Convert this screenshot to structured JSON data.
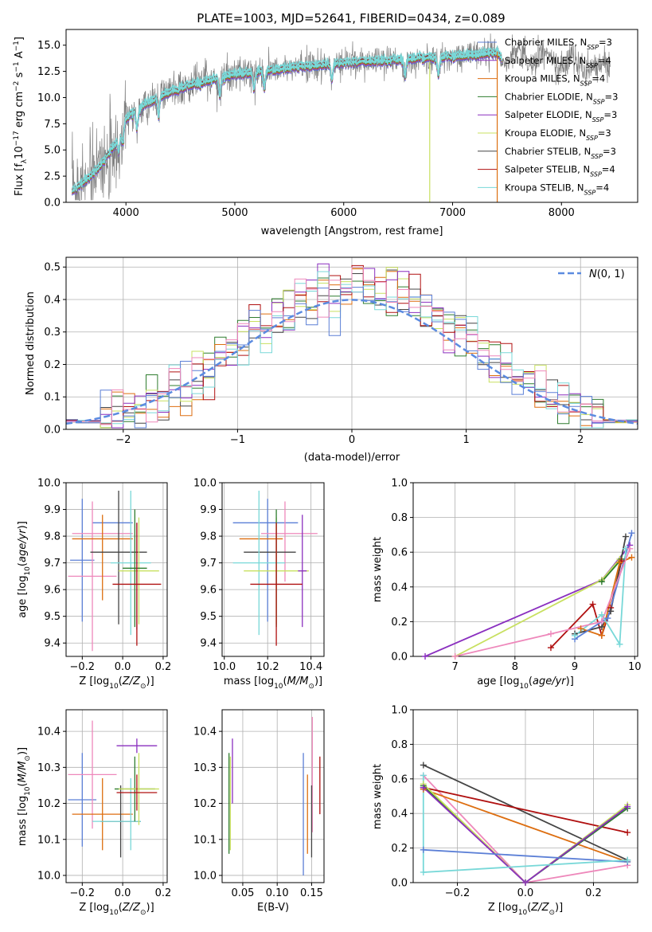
{
  "figure_title": "PLATE=1003, MJD=52641, FIBERID=0434, z=0.089",
  "colors": {
    "Chabrier MILES": "#5b7fd6",
    "Salpeter MILES": "#8a2fbf",
    "Kroupa MILES": "#dd6e10",
    "Chabrier ELODIE": "#2f7d2f",
    "Salpeter ELODIE": "#8a2fbf",
    "Kroupa ELODIE": "#c8e060",
    "Chabrier STELIB": "#444444",
    "Salpeter STELIB": "#b01010",
    "Kroupa STELIB": "#78d8d8",
    "data": "#808080",
    "gaussian": "#5b8be0",
    "grid": "#b0b0b0"
  },
  "chart_data": [
    {
      "id": "spectrum",
      "type": "line",
      "title": "PLATE=1003, MJD=52641, FIBERID=0434, z=0.089",
      "xlabel": "wavelength [Angstrom, rest frame]",
      "ylabel": "Flux [f_λ 10^-17 erg cm^-2 s^-1 A^-1]",
      "xlim": [
        3450,
        8700
      ],
      "ylim": [
        0,
        16.5
      ],
      "xticks": [
        4000,
        5000,
        6000,
        7000,
        8000
      ],
      "yticks": [
        0.0,
        2.5,
        5.0,
        7.5,
        10.0,
        12.5,
        15.0
      ],
      "grid": false,
      "legend": "top-right",
      "legend_entries": [
        {
          "label": "Chabrier MILES, N",
          "sub": "SSP",
          "suffix": "=3",
          "color": "#5b7fd6"
        },
        {
          "label": "Salpeter MILES, N",
          "sub": "SSP",
          "suffix": "=4",
          "color": "#8a2fbf"
        },
        {
          "label": "Kroupa MILES, N",
          "sub": "SSP",
          "suffix": "=4",
          "color": "#dd6e10"
        },
        {
          "label": "Chabrier ELODIE, N",
          "sub": "SSP",
          "suffix": "=3",
          "color": "#2f7d2f"
        },
        {
          "label": "Salpeter ELODIE, N",
          "sub": "SSP",
          "suffix": "=3",
          "color": "#8a2fbf"
        },
        {
          "label": "Kroupa ELODIE, N",
          "sub": "SSP",
          "suffix": "=3",
          "color": "#c8e060"
        },
        {
          "label": "Chabrier STELIB, N",
          "sub": "SSP",
          "suffix": "=3",
          "color": "#444444"
        },
        {
          "label": "Salpeter STELIB, N",
          "sub": "SSP",
          "suffix": "=4",
          "color": "#b01010"
        },
        {
          "label": "Kroupa STELIB, N",
          "sub": "SSP",
          "suffix": "=4",
          "color": "#78d8d8"
        }
      ],
      "continuum_model": {
        "wavelength": [
          3500,
          3700,
          3900,
          4000,
          4200,
          4400,
          4700,
          5000,
          5300,
          5600,
          6000,
          6500,
          7000,
          7400
        ],
        "flux": [
          3.5,
          4.2,
          6.0,
          8.0,
          9.5,
          10.5,
          11.5,
          12.2,
          12.6,
          12.9,
          13.3,
          13.6,
          13.9,
          14.3
        ]
      },
      "model_end_wavelength": 7450,
      "data_end_wavelength": 8450
    },
    {
      "id": "residuals",
      "type": "histogram",
      "xlabel": "(data-model)/error",
      "ylabel": "Normed distribution",
      "xlim": [
        -2.5,
        2.5
      ],
      "ylim": [
        0,
        0.53
      ],
      "xticks": [
        -2,
        -1,
        0,
        1,
        2
      ],
      "yticks": [
        0.0,
        0.1,
        0.2,
        0.3,
        0.4,
        0.5
      ],
      "grid": true,
      "legend": "top-right",
      "legend_entries": [
        {
          "label": "N(0,1)",
          "style": "dashed",
          "color": "#5b8be0"
        }
      ],
      "bin_width": 0.1,
      "gaussian": {
        "mean": 0,
        "sigma": 1
      }
    },
    {
      "id": "age-vs-Z",
      "type": "errorbar",
      "xlabel": "Z [log10(Z/Z⊙)]",
      "ylabel": "age [log10(age/yr)]",
      "xlim": [
        -0.28,
        0.22
      ],
      "ylim": [
        9.35,
        10.0
      ],
      "xticks": [
        -0.2,
        0.0,
        0.2
      ],
      "yticks": [
        9.4,
        9.5,
        9.6,
        9.7,
        9.8,
        9.9,
        10.0
      ],
      "grid": true,
      "points": [
        {
          "model": "Chabrier MILES",
          "x": -0.2,
          "xerr": 0.06,
          "y": 9.71,
          "yerr": 0.23,
          "color": "#5b7fd6"
        },
        {
          "model": "Chabrier MILES b",
          "x": -0.05,
          "xerr": 0.1,
          "y": 9.85,
          "yerr": 0.0,
          "color": "#5b7fd6"
        },
        {
          "model": "Salpeter MILES",
          "x": -0.15,
          "xerr": 0.12,
          "y": 9.65,
          "yerr": 0.28,
          "color": "#ee88bb"
        },
        {
          "model": "Salpeter MILES b",
          "x": -0.1,
          "xerr": 0.15,
          "y": 9.81,
          "yerr": 0.0,
          "color": "#ee88bb"
        },
        {
          "model": "Kroupa MILES",
          "x": -0.1,
          "xerr": 0.15,
          "y": 9.79,
          "yerr": 0.0,
          "color": "#dd6e10"
        },
        {
          "model": "Kroupa MILES b",
          "x": -0.1,
          "xerr": 0.0,
          "y": 9.72,
          "yerr": 0.16,
          "color": "#dd6e10"
        },
        {
          "model": "Chabrier STELIB",
          "x": -0.02,
          "xerr": 0.14,
          "y": 9.74,
          "yerr": 0.0,
          "color": "#444444"
        },
        {
          "model": "Chabrier STELIB b",
          "x": -0.02,
          "xerr": 0.0,
          "y": 9.72,
          "yerr": 0.25,
          "color": "#444444"
        },
        {
          "model": "Kroupa STELIB",
          "x": 0.04,
          "xerr": 0.1,
          "y": 9.7,
          "yerr": 0.27,
          "color": "#78d8d8"
        },
        {
          "model": "Kroupa ELODIE",
          "x": 0.08,
          "xerr": 0.1,
          "y": 9.67,
          "yerr": 0.2,
          "color": "#c8e060"
        },
        {
          "model": "Chabrier ELODIE",
          "x": 0.06,
          "xerr": 0.06,
          "y": 9.68,
          "yerr": 0.22,
          "color": "#2f7d2f"
        },
        {
          "model": "Salpeter ELODIE",
          "x": 0.07,
          "xerr": 0.0,
          "y": 9.65,
          "yerr": 0.2,
          "color": "#8a2fbf"
        },
        {
          "model": "Salpeter STELIB",
          "x": 0.07,
          "xerr": 0.12,
          "y": 9.62,
          "yerr": 0.23,
          "color": "#b01010"
        }
      ]
    },
    {
      "id": "age-vs-mass",
      "type": "errorbar",
      "xlabel": "mass [log10(M/M⊙)]",
      "ylabel": "",
      "xlim": [
        9.99,
        10.46
      ],
      "ylim": [
        9.35,
        10.0
      ],
      "xticks": [
        10.0,
        10.2,
        10.4
      ],
      "yticks": [
        9.4,
        9.5,
        9.6,
        9.7,
        9.8,
        9.9,
        10.0
      ],
      "grid": true,
      "points": [
        {
          "model": "Chabrier MILES",
          "x": 10.19,
          "xerr": 0.15,
          "y": 9.85,
          "yerr": 0.0,
          "color": "#5b7fd6"
        },
        {
          "model": "Chabrier MILES b",
          "x": 10.2,
          "xerr": 0.0,
          "y": 9.71,
          "yerr": 0.23,
          "color": "#5b7fd6"
        },
        {
          "model": "Salpeter MILES",
          "x": 10.3,
          "xerr": 0.13,
          "y": 9.81,
          "yerr": 0.0,
          "color": "#ee88bb"
        },
        {
          "model": "Salpeter MILES b",
          "x": 10.28,
          "xerr": 0.0,
          "y": 9.78,
          "yerr": 0.15,
          "color": "#ee88bb"
        },
        {
          "model": "Kroupa MILES",
          "x": 10.17,
          "xerr": 0.1,
          "y": 9.79,
          "yerr": 0.0,
          "color": "#dd6e10"
        },
        {
          "model": "Chabrier STELIB",
          "x": 10.21,
          "xerr": 0.12,
          "y": 9.74,
          "yerr": 0.0,
          "color": "#444444"
        },
        {
          "model": "Kroupa STELIB",
          "x": 10.16,
          "xerr": 0.12,
          "y": 9.7,
          "yerr": 0.27,
          "color": "#78d8d8"
        },
        {
          "model": "Kroupa ELODIE",
          "x": 10.24,
          "xerr": 0.15,
          "y": 9.67,
          "yerr": 0.2,
          "color": "#c8e060"
        },
        {
          "model": "Chabrier ELODIE",
          "x": 10.24,
          "xerr": 0.0,
          "y": 9.68,
          "yerr": 0.22,
          "color": "#2f7d2f"
        },
        {
          "model": "Salpeter ELODIE",
          "x": 10.36,
          "xerr": 0.02,
          "y": 9.67,
          "yerr": 0.21,
          "color": "#8a2fbf"
        },
        {
          "model": "Salpeter STELIB",
          "x": 10.24,
          "xerr": 0.12,
          "y": 9.62,
          "yerr": 0.23,
          "color": "#b01010"
        }
      ]
    },
    {
      "id": "weight-vs-age",
      "type": "line",
      "xlabel": "age [log10(age/yr)]",
      "ylabel": "mass weight",
      "xlim": [
        6.3,
        10.05
      ],
      "ylim": [
        0,
        1.0
      ],
      "xticks": [
        7,
        8,
        9,
        10
      ],
      "yticks": [
        0.0,
        0.2,
        0.4,
        0.6,
        0.8,
        1.0
      ],
      "grid": true,
      "series": [
        {
          "name": "Salpeter MILES",
          "color": "#8a2fbf",
          "x": [
            6.5,
            9.45,
            9.92
          ],
          "y": [
            0.0,
            0.44,
            0.64
          ]
        },
        {
          "name": "Kroupa ELODIE",
          "color": "#c8e060",
          "x": [
            7.0,
            9.45,
            9.75
          ],
          "y": [
            0.0,
            0.44,
            0.56
          ]
        },
        {
          "name": "Chabrier ELODIE",
          "color": "#2f7d2f",
          "x": [
            9.45,
            9.78
          ],
          "y": [
            0.43,
            0.56
          ]
        },
        {
          "name": "Salpeter STELIB",
          "color": "#b01010",
          "x": [
            8.6,
            9.3,
            9.45,
            9.6,
            9.78
          ],
          "y": [
            0.05,
            0.3,
            0.12,
            0.28,
            0.55
          ]
        },
        {
          "name": "Chabrier STELIB",
          "color": "#444444",
          "x": [
            9.0,
            9.45,
            9.6,
            9.85
          ],
          "y": [
            0.13,
            0.17,
            0.26,
            0.69
          ]
        },
        {
          "name": "Kroupa MILES",
          "color": "#dd6e10",
          "x": [
            9.1,
            9.45,
            9.75,
            9.95
          ],
          "y": [
            0.16,
            0.12,
            0.54,
            0.57
          ]
        },
        {
          "name": "Chabrier MILES",
          "color": "#5b7fd6",
          "x": [
            9.0,
            9.45,
            9.55,
            9.95
          ],
          "y": [
            0.1,
            0.2,
            0.22,
            0.71
          ]
        },
        {
          "name": "Kroupa STELIB",
          "color": "#78d8d8",
          "x": [
            9.0,
            9.45,
            9.75,
            9.85
          ],
          "y": [
            0.12,
            0.24,
            0.07,
            0.62
          ]
        },
        {
          "name": "Salpeter MILES pink",
          "color": "#ee88bb",
          "x": [
            7.0,
            8.6,
            9.45,
            9.92
          ],
          "y": [
            0.0,
            0.13,
            0.2,
            0.62
          ]
        }
      ]
    },
    {
      "id": "mass-vs-Z",
      "type": "errorbar",
      "xlabel": "Z [log10(Z/Z⊙)]",
      "ylabel": "mass [log10(M/M⊙)]",
      "xlim": [
        -0.28,
        0.22
      ],
      "ylim": [
        9.98,
        10.46
      ],
      "xticks": [
        -0.2,
        0.0,
        0.2
      ],
      "yticks": [
        10.0,
        10.1,
        10.2,
        10.3,
        10.4
      ],
      "grid": true,
      "points": [
        {
          "model": "Chabrier MILES",
          "x": -0.2,
          "xerr": 0.07,
          "y": 10.21,
          "yerr": 0.13,
          "color": "#5b7fd6"
        },
        {
          "model": "Salpeter MILES",
          "x": -0.15,
          "xerr": 0.12,
          "y": 10.28,
          "yerr": 0.15,
          "color": "#ee88bb"
        },
        {
          "model": "Kroupa MILES",
          "x": -0.1,
          "xerr": 0.15,
          "y": 10.17,
          "yerr": 0.1,
          "color": "#dd6e10"
        },
        {
          "model": "Kroupa STELIB",
          "x": 0.04,
          "xerr": 0.0,
          "y": 10.17,
          "yerr": 0.1,
          "color": "#78d8d8"
        },
        {
          "model": "Chabrier STELIB",
          "x": -0.01,
          "xerr": 0.1,
          "y": 10.15,
          "yerr": 0.1,
          "color": "#444444"
        },
        {
          "model": "Kroupa STELIB b",
          "x": -0.03,
          "xerr": 0.12,
          "y": 10.15,
          "yerr": 0.0,
          "color": "#78d8d8"
        },
        {
          "model": "Chabrier ELODIE",
          "x": 0.06,
          "xerr": 0.1,
          "y": 10.24,
          "yerr": 0.09,
          "color": "#2f7d2f"
        },
        {
          "model": "Kroupa ELODIE",
          "x": 0.08,
          "xerr": 0.1,
          "y": 10.24,
          "yerr": 0.1,
          "color": "#c8e060"
        },
        {
          "model": "Salpeter ELODIE",
          "x": 0.07,
          "xerr": 0.1,
          "y": 10.36,
          "yerr": 0.02,
          "color": "#8a2fbf"
        },
        {
          "model": "Salpeter STELIB",
          "x": 0.07,
          "xerr": 0.1,
          "y": 10.23,
          "yerr": 0.05,
          "color": "#b01010"
        }
      ]
    },
    {
      "id": "mass-vs-ebv",
      "type": "errorbar",
      "xlabel": "E(B-V)",
      "ylabel": "",
      "xlim": [
        0.02,
        0.168
      ],
      "ylim": [
        9.98,
        10.46
      ],
      "xticks": [
        0.05,
        0.1,
        0.15
      ],
      "yticks": [
        10.0,
        10.1,
        10.2,
        10.3,
        10.4
      ],
      "grid": true,
      "points": [
        {
          "model": "Chabrier ELODIE",
          "x": 0.03,
          "xerr": 0.0,
          "y": 10.2,
          "yerr": 0.14,
          "color": "#2f7d2f"
        },
        {
          "model": "Kroupa ELODIE",
          "x": 0.032,
          "xerr": 0.0,
          "y": 10.2,
          "yerr": 0.13,
          "color": "#c8e060"
        },
        {
          "model": "Salpeter ELODIE",
          "x": 0.035,
          "xerr": 0.0,
          "y": 10.29,
          "yerr": 0.09,
          "color": "#8a2fbf"
        },
        {
          "model": "Chabrier MILES",
          "x": 0.138,
          "xerr": 0.0,
          "y": 10.17,
          "yerr": 0.17,
          "color": "#5b7fd6"
        },
        {
          "model": "Kroupa MILES",
          "x": 0.144,
          "xerr": 0.0,
          "y": 10.17,
          "yerr": 0.11,
          "color": "#dd6e10"
        },
        {
          "model": "Salpeter MILES",
          "x": 0.151,
          "xerr": 0.0,
          "y": 10.28,
          "yerr": 0.16,
          "color": "#ee88bb"
        },
        {
          "model": "Chabrier STELIB",
          "x": 0.15,
          "xerr": 0.0,
          "y": 10.15,
          "yerr": 0.1,
          "color": "#444444"
        },
        {
          "model": "Salpeter STELIB",
          "x": 0.162,
          "xerr": 0.0,
          "y": 10.25,
          "yerr": 0.08,
          "color": "#b01010"
        }
      ]
    },
    {
      "id": "weight-vs-Z",
      "type": "line",
      "xlabel": "Z [log10(Z/Z⊙)]",
      "ylabel": "mass weight",
      "xlim": [
        -0.33,
        0.33
      ],
      "ylim": [
        0,
        1.0
      ],
      "xticks": [
        -0.2,
        0.0,
        0.2
      ],
      "yticks": [
        0.0,
        0.2,
        0.4,
        0.6,
        0.8,
        1.0
      ],
      "grid": true,
      "series": [
        {
          "name": "Chabrier STELIB",
          "color": "#444444",
          "x": [
            -0.3,
            0.3
          ],
          "y": [
            0.68,
            0.13
          ]
        },
        {
          "name": "Salpeter MILES pink",
          "color": "#ee88bb",
          "x": [
            -0.3,
            0.0,
            0.3
          ],
          "y": [
            0.62,
            0.0,
            0.1
          ]
        },
        {
          "name": "Salpeter STELIB",
          "color": "#b01010",
          "x": [
            -0.3,
            0.3
          ],
          "y": [
            0.55,
            0.29
          ]
        },
        {
          "name": "Kroupa MILES",
          "color": "#dd6e10",
          "x": [
            -0.3,
            0.3
          ],
          "y": [
            0.54,
            0.12
          ]
        },
        {
          "name": "Chabrier ELODIE",
          "color": "#2f7d2f",
          "x": [
            -0.3,
            0.0,
            0.3
          ],
          "y": [
            0.56,
            0.0,
            0.43
          ]
        },
        {
          "name": "Kroupa ELODIE",
          "color": "#c8e060",
          "x": [
            -0.3,
            0.0,
            0.3
          ],
          "y": [
            0.57,
            0.0,
            0.45
          ]
        },
        {
          "name": "Salpeter ELODIE",
          "color": "#8a2fbf",
          "x": [
            -0.3,
            0.0,
            0.3
          ],
          "y": [
            0.55,
            0.0,
            0.44
          ]
        },
        {
          "name": "Chabrier MILES",
          "color": "#5b7fd6",
          "x": [
            -0.3,
            0.3
          ],
          "y": [
            0.19,
            0.12
          ]
        },
        {
          "name": "Kroupa STELIB",
          "color": "#78d8d8",
          "x": [
            -0.3,
            -0.3,
            0.3
          ],
          "y": [
            0.62,
            0.06,
            0.13
          ]
        }
      ]
    }
  ]
}
